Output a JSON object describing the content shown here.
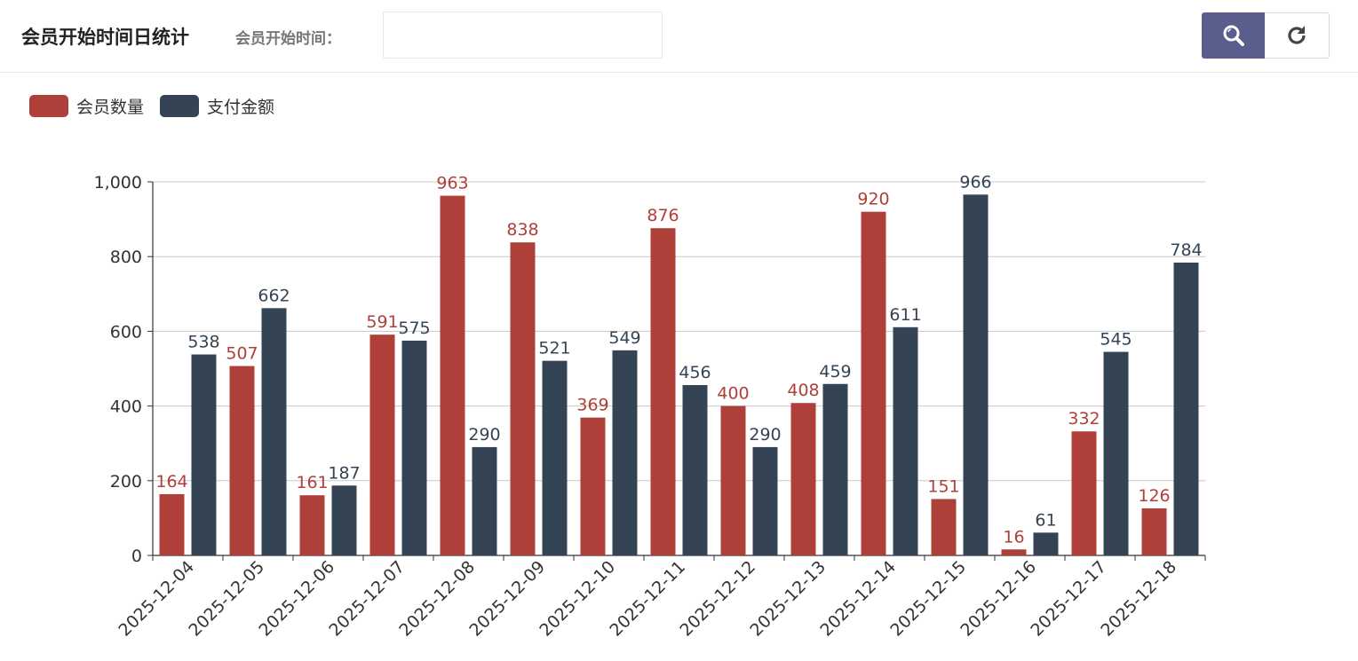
{
  "header": {
    "title": "会员开始时间日统计",
    "filter_label": "会员开始时间：",
    "date_value": ""
  },
  "buttons": {
    "search_icon": "search-icon",
    "refresh_icon": "refresh-icon"
  },
  "colors": {
    "member_count": "#af4039",
    "payment_amount": "#344455",
    "search_button": "#595e8c"
  },
  "chart_data": {
    "type": "bar",
    "categories": [
      "2025-12-04",
      "2025-12-05",
      "2025-12-06",
      "2025-12-07",
      "2025-12-08",
      "2025-12-09",
      "2025-12-10",
      "2025-12-11",
      "2025-12-12",
      "2025-12-13",
      "2025-12-14",
      "2025-12-15",
      "2025-12-16",
      "2025-12-17",
      "2025-12-18"
    ],
    "series": [
      {
        "name": "会员数量",
        "color": "#af4039",
        "values": [
          164,
          507,
          161,
          591,
          963,
          838,
          369,
          876,
          400,
          408,
          920,
          151,
          16,
          332,
          126
        ]
      },
      {
        "name": "支付金额",
        "color": "#344455",
        "values": [
          538,
          662,
          187,
          575,
          290,
          521,
          549,
          456,
          290,
          459,
          611,
          966,
          61,
          545,
          784
        ]
      }
    ],
    "ylim": [
      0,
      1000
    ],
    "yticks": [
      0,
      200,
      400,
      600,
      800,
      1000
    ],
    "ytick_labels": [
      "0",
      "200",
      "400",
      "600",
      "800",
      "1,000"
    ],
    "grid": true,
    "legend": "top-left",
    "data_labels": true
  }
}
